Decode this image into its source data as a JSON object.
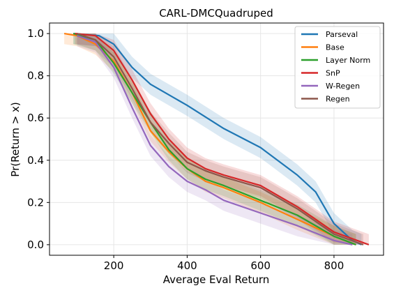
{
  "chart_data": {
    "type": "line",
    "title": "CARL-DMCQuadruped",
    "xlabel": "Average Eval Return",
    "ylabel": "Pr(Return > x)",
    "xlim": [
      25,
      935
    ],
    "ylim": [
      -0.05,
      1.05
    ],
    "xticks": [
      {
        "value": 200,
        "label": "200"
      },
      {
        "value": 400,
        "label": "400"
      },
      {
        "value": 600,
        "label": "600"
      },
      {
        "value": 800,
        "label": "800"
      }
    ],
    "yticks": [
      {
        "value": 0.0,
        "label": "0.0"
      },
      {
        "value": 0.2,
        "label": "0.2"
      },
      {
        "value": 0.4,
        "label": "0.4"
      },
      {
        "value": 0.6,
        "label": "0.6"
      },
      {
        "value": 0.8,
        "label": "0.8"
      },
      {
        "value": 1.0,
        "label": "1.0"
      }
    ],
    "grid": true,
    "legend_position": "top-right",
    "series": [
      {
        "name": "Parseval",
        "color": "#1f77b4",
        "x": [
          90,
          160,
          200,
          250,
          300,
          400,
          500,
          600,
          700,
          750,
          800,
          850,
          875
        ],
        "y": [
          1.0,
          0.99,
          0.95,
          0.84,
          0.76,
          0.66,
          0.55,
          0.46,
          0.33,
          0.25,
          0.1,
          0.02,
          0.0
        ]
      },
      {
        "name": "Base",
        "color": "#ff7f0e",
        "x": [
          65,
          100,
          150,
          200,
          250,
          300,
          350,
          400,
          450,
          500,
          600,
          700,
          800,
          860
        ],
        "y": [
          1.0,
          0.99,
          0.95,
          0.87,
          0.72,
          0.54,
          0.44,
          0.36,
          0.3,
          0.27,
          0.2,
          0.12,
          0.04,
          0.0
        ]
      },
      {
        "name": "Layer Norm",
        "color": "#2ca02c",
        "x": [
          90,
          150,
          200,
          250,
          300,
          350,
          400,
          450,
          500,
          600,
          700,
          800,
          860
        ],
        "y": [
          1.0,
          0.97,
          0.86,
          0.72,
          0.58,
          0.45,
          0.36,
          0.31,
          0.28,
          0.21,
          0.14,
          0.04,
          0.0
        ]
      },
      {
        "name": "SnP",
        "color": "#d62728",
        "x": [
          95,
          150,
          200,
          250,
          300,
          350,
          400,
          450,
          500,
          600,
          700,
          800,
          895
        ],
        "y": [
          1.0,
          0.99,
          0.92,
          0.78,
          0.62,
          0.5,
          0.41,
          0.36,
          0.33,
          0.28,
          0.18,
          0.06,
          0.0
        ]
      },
      {
        "name": "W-Regen",
        "color": "#9467bd",
        "x": [
          100,
          150,
          200,
          250,
          300,
          350,
          400,
          450,
          500,
          600,
          700,
          800,
          850
        ],
        "y": [
          0.99,
          0.96,
          0.84,
          0.65,
          0.47,
          0.37,
          0.3,
          0.26,
          0.21,
          0.15,
          0.09,
          0.02,
          0.0
        ]
      },
      {
        "name": "Regen",
        "color": "#8c564b",
        "x": [
          100,
          150,
          200,
          250,
          300,
          350,
          400,
          450,
          500,
          600,
          700,
          800,
          880
        ],
        "y": [
          1.0,
          0.97,
          0.89,
          0.74,
          0.58,
          0.48,
          0.39,
          0.35,
          0.32,
          0.27,
          0.17,
          0.05,
          0.0
        ]
      }
    ]
  }
}
